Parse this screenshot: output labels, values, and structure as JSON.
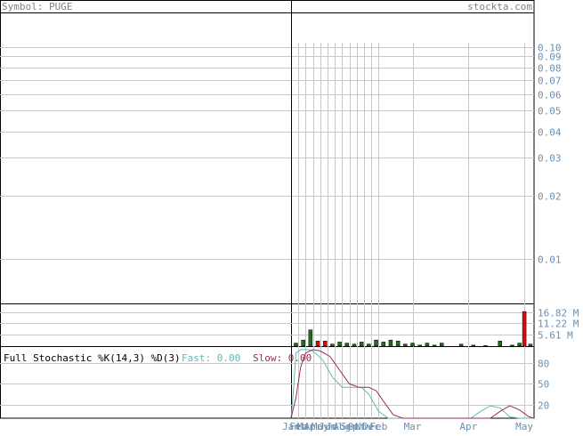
{
  "header": {
    "symbol_label": "Symbol: PUGE",
    "site_label": "stockta.com"
  },
  "colors": {
    "grid": "#c8c8c8",
    "frame": "#000000",
    "volume_up": "#1e6e1e",
    "volume_down": "#d01010",
    "fast_line": "#5fb8b0",
    "slow_line": "#9b2b5a",
    "label": "#808080"
  },
  "chart_data": [
    {
      "type": "line",
      "panel": "price",
      "scale": "log",
      "y_ticks": [
        "0.10",
        "0.09",
        "0.08",
        "0.07",
        "0.06",
        "0.05",
        "0.04",
        "0.03",
        "0.02",
        "0.01"
      ],
      "y_tick_values": [
        0.1,
        0.09,
        0.08,
        0.07,
        0.06,
        0.05,
        0.04,
        0.03,
        0.02,
        0.01
      ],
      "ylim": [
        0.0062,
        0.145
      ],
      "x_tick_labels": [
        "Jan",
        "Feb",
        "Mar",
        "Apr",
        "May",
        "Jun",
        "Jul",
        "Aug",
        "Sep",
        "Oct",
        "Nov",
        "Dec",
        "Feb",
        "Mar",
        "Apr",
        "May"
      ],
      "grid": true
    },
    {
      "type": "bar",
      "panel": "volume",
      "y_ticks": [
        "16.82 M",
        "11.22 M",
        "5.61 M"
      ],
      "y_tick_values": [
        16.82,
        11.22,
        5.61
      ],
      "ylim": [
        0,
        21
      ],
      "unit": "M",
      "bars": [
        {
          "x": 0.02,
          "value": 1.5,
          "dir": "up"
        },
        {
          "x": 0.05,
          "value": 3.0,
          "dir": "up"
        },
        {
          "x": 0.08,
          "value": 8.0,
          "dir": "up"
        },
        {
          "x": 0.11,
          "value": 2.5,
          "dir": "down"
        },
        {
          "x": 0.14,
          "value": 2.5,
          "dir": "down"
        },
        {
          "x": 0.17,
          "value": 1.0,
          "dir": "up"
        },
        {
          "x": 0.2,
          "value": 2.0,
          "dir": "up"
        },
        {
          "x": 0.23,
          "value": 1.5,
          "dir": "up"
        },
        {
          "x": 0.26,
          "value": 1.0,
          "dir": "up"
        },
        {
          "x": 0.29,
          "value": 2.0,
          "dir": "up"
        },
        {
          "x": 0.32,
          "value": 1.0,
          "dir": "up"
        },
        {
          "x": 0.35,
          "value": 3.0,
          "dir": "up"
        },
        {
          "x": 0.38,
          "value": 2.0,
          "dir": "up"
        },
        {
          "x": 0.41,
          "value": 3.0,
          "dir": "up"
        },
        {
          "x": 0.44,
          "value": 2.5,
          "dir": "up"
        },
        {
          "x": 0.47,
          "value": 1.0,
          "dir": "up"
        },
        {
          "x": 0.5,
          "value": 1.5,
          "dir": "up"
        },
        {
          "x": 0.53,
          "value": 0.5,
          "dir": "up"
        },
        {
          "x": 0.56,
          "value": 1.5,
          "dir": "up"
        },
        {
          "x": 0.59,
          "value": 0.5,
          "dir": "up"
        },
        {
          "x": 0.62,
          "value": 1.5,
          "dir": "up"
        },
        {
          "x": 0.7,
          "value": 1.0,
          "dir": "up"
        },
        {
          "x": 0.75,
          "value": 0.5,
          "dir": "up"
        },
        {
          "x": 0.8,
          "value": 0.3,
          "dir": "up"
        },
        {
          "x": 0.86,
          "value": 2.5,
          "dir": "up"
        },
        {
          "x": 0.91,
          "value": 0.5,
          "dir": "up"
        },
        {
          "x": 0.94,
          "value": 1.5,
          "dir": "up"
        },
        {
          "x": 0.96,
          "value": 17.0,
          "dir": "down"
        },
        {
          "x": 0.985,
          "value": 1.0,
          "dir": "up"
        }
      ]
    },
    {
      "type": "line",
      "panel": "stochastic",
      "title": "Full Stochastic %K(14,3) %D(3)",
      "fast_label": "Fast: 0.00",
      "slow_label": "Slow: 0.00",
      "y_ticks": [
        "80",
        "50",
        "20"
      ],
      "y_tick_values": [
        80,
        50,
        20
      ],
      "ylim": [
        0,
        105
      ],
      "series": [
        {
          "role": "fast",
          "x": [
            0.0,
            0.01,
            0.02,
            0.04,
            0.07,
            0.09,
            0.13,
            0.17,
            0.21,
            0.25,
            0.29,
            0.32,
            0.36,
            0.4,
            0.43,
            0.46,
            0.5,
            0.54,
            0.58,
            0.62,
            0.66,
            0.7,
            0.74,
            0.78,
            0.82,
            0.86,
            0.9,
            0.94,
            0.98,
            1.0
          ],
          "values": [
            0,
            40,
            95,
            100,
            100,
            98,
            85,
            60,
            45,
            45,
            45,
            35,
            10,
            0,
            0,
            0,
            0,
            0,
            0,
            0,
            0,
            0,
            0,
            10,
            18,
            15,
            2,
            0,
            0,
            0
          ]
        },
        {
          "role": "slow",
          "x": [
            0.0,
            0.02,
            0.04,
            0.06,
            0.09,
            0.12,
            0.16,
            0.2,
            0.24,
            0.28,
            0.32,
            0.35,
            0.38,
            0.42,
            0.46,
            0.5,
            0.54,
            0.58,
            0.62,
            0.66,
            0.7,
            0.74,
            0.78,
            0.82,
            0.86,
            0.9,
            0.94,
            0.98,
            1.0
          ],
          "values": [
            0,
            30,
            75,
            95,
            100,
            98,
            90,
            70,
            50,
            45,
            45,
            40,
            25,
            5,
            0,
            0,
            0,
            0,
            0,
            0,
            0,
            0,
            0,
            0,
            10,
            18,
            12,
            2,
            0
          ]
        }
      ]
    }
  ],
  "x_axis": {
    "labels": [
      {
        "text": "Jan",
        "pos": 0.0
      },
      {
        "text": "Feb",
        "pos": 0.03
      },
      {
        "text": "Mar",
        "pos": 0.06
      },
      {
        "text": "Apr",
        "pos": 0.09
      },
      {
        "text": "May",
        "pos": 0.12
      },
      {
        "text": "Jun",
        "pos": 0.15
      },
      {
        "text": "Jul",
        "pos": 0.18
      },
      {
        "text": "Aug",
        "pos": 0.21
      },
      {
        "text": "Sep",
        "pos": 0.24
      },
      {
        "text": "Oct",
        "pos": 0.27
      },
      {
        "text": "Nov",
        "pos": 0.3
      },
      {
        "text": "Dec",
        "pos": 0.33
      },
      {
        "text": "Feb",
        "pos": 0.36
      },
      {
        "text": "Mar",
        "pos": 0.5
      },
      {
        "text": "Apr",
        "pos": 0.73
      },
      {
        "text": "May",
        "pos": 0.96
      }
    ]
  }
}
